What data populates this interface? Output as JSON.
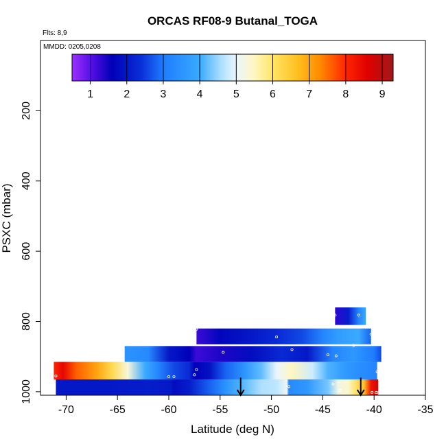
{
  "chart_data": {
    "type": "heatmap",
    "title": "ORCAS RF08-9 Butanal_TOGA",
    "subtitle_flights": "Flts: 8,9",
    "subtitle_dates": "MMDD: 0205,0208",
    "xlabel": "Latitude (deg N)",
    "ylabel": "PSXC (mbar)",
    "xlim": [
      -72.5,
      -35
    ],
    "ylim": [
      1010,
      0
    ],
    "x_ticks": [
      -70,
      -65,
      -60,
      -55,
      -50,
      -45,
      -40,
      -35
    ],
    "y_ticks": [
      200,
      400,
      600,
      800,
      1000
    ],
    "colorbar": {
      "range": [
        0.5,
        9.3
      ],
      "ticks": [
        1,
        2,
        3,
        4,
        5,
        6,
        7,
        8,
        9
      ],
      "stops": [
        {
          "v": 0.5,
          "c": "#9b30ff"
        },
        {
          "v": 1.0,
          "c": "#5a10e6"
        },
        {
          "v": 1.6,
          "c": "#0000b8"
        },
        {
          "v": 2.4,
          "c": "#0a2fd8"
        },
        {
          "v": 3.0,
          "c": "#1e7cff"
        },
        {
          "v": 4.0,
          "c": "#3aaaff"
        },
        {
          "v": 4.6,
          "c": "#aee0ff"
        },
        {
          "v": 5.0,
          "c": "#eaf6ff"
        },
        {
          "v": 5.5,
          "c": "#fff6c0"
        },
        {
          "v": 6.0,
          "c": "#ffe566"
        },
        {
          "v": 6.7,
          "c": "#ffbe1e"
        },
        {
          "v": 7.3,
          "c": "#ff8a00"
        },
        {
          "v": 8.0,
          "c": "#ff2600"
        },
        {
          "v": 8.6,
          "c": "#e00000"
        },
        {
          "v": 9.3,
          "c": "#a01818"
        }
      ]
    },
    "bands": [
      {
        "p_top": 760,
        "p_bot": 810,
        "points": [
          [
            -43.8,
            1.3
          ],
          [
            -42.5,
            2.1
          ],
          [
            -41.5,
            3.2
          ],
          [
            -40.8,
            4.0
          ]
        ]
      },
      {
        "p_top": 820,
        "p_bot": 865,
        "points": [
          [
            -57.3,
            1.2
          ],
          [
            -55,
            1.7
          ],
          [
            -52,
            2.0
          ],
          [
            -49.5,
            2.3
          ],
          [
            -47,
            2.6
          ],
          [
            -45,
            3.2
          ],
          [
            -43.5,
            3.7
          ],
          [
            -41.5,
            4.0
          ],
          [
            -40.3,
            2.8
          ]
        ]
      },
      {
        "p_top": 870,
        "p_bot": 915,
        "points": [
          [
            -64.3,
            3.5
          ],
          [
            -62,
            3.3
          ],
          [
            -60,
            2.0
          ],
          [
            -58,
            1.6
          ],
          [
            -57.3,
            1.2
          ],
          [
            -55,
            1.4
          ],
          [
            -52,
            1.8
          ],
          [
            -49,
            2.3
          ],
          [
            -46.5,
            2.0
          ],
          [
            -44,
            3.2
          ],
          [
            -42,
            3.6
          ],
          [
            -40,
            3.0
          ],
          [
            -39.3,
            2.6
          ]
        ]
      },
      {
        "p_top": 915,
        "p_bot": 965,
        "points": [
          [
            -71.2,
            8.0
          ],
          [
            -70.3,
            8.5
          ],
          [
            -69,
            7.6
          ],
          [
            -67,
            7.0
          ],
          [
            -65.5,
            6.2
          ],
          [
            -64,
            5.3
          ],
          [
            -62.3,
            4.0
          ],
          [
            -61,
            3.2
          ],
          [
            -59.5,
            2.6
          ],
          [
            -58,
            2.3
          ],
          [
            -57.5,
            1.6
          ],
          [
            -56,
            1.9
          ],
          [
            -54.5,
            2.8
          ],
          [
            -52.5,
            3.6
          ],
          [
            -51,
            4.2
          ],
          [
            -49.5,
            5.0
          ],
          [
            -48,
            5.5
          ],
          [
            -46,
            4.8
          ],
          [
            -44.5,
            4.1
          ],
          [
            -43,
            3.7
          ],
          [
            -41.5,
            3.4
          ],
          [
            -39.7,
            3.2
          ]
        ]
      },
      {
        "p_top": 965,
        "p_bot": 1010,
        "points": [
          [
            -71,
            2.0
          ],
          [
            -66,
            2.0
          ],
          [
            -62,
            2.1
          ],
          [
            -59.8,
            2.0
          ],
          [
            -59.5,
            1.8
          ],
          [
            -58,
            2.1
          ],
          [
            -56,
            2.8
          ],
          [
            -54.5,
            3.5
          ],
          [
            -53,
            4.1
          ],
          [
            -51,
            4.6
          ],
          [
            -49.5,
            4.7
          ],
          [
            -48.5,
            5.1
          ],
          [
            -48.3,
            3.3
          ],
          [
            -46.5,
            3.6
          ],
          [
            -44.5,
            4.3
          ],
          [
            -43.5,
            5.2
          ],
          [
            -42.5,
            5.4
          ],
          [
            -41.7,
            6.1
          ],
          [
            -41,
            6.6
          ],
          [
            -40.3,
            8.3
          ],
          [
            -39.6,
            8.8
          ]
        ]
      }
    ],
    "sample_points": [
      [
        -43.8,
        782
      ],
      [
        -41.5,
        782
      ],
      [
        -57.3,
        822
      ],
      [
        -49.5,
        844
      ],
      [
        -40.3,
        836
      ],
      [
        -54.7,
        888
      ],
      [
        -48,
        880
      ],
      [
        -44.5,
        895
      ],
      [
        -43.7,
        898
      ],
      [
        -42,
        868
      ],
      [
        -71,
        955
      ],
      [
        -60,
        957
      ],
      [
        -59.5,
        957
      ],
      [
        -57.3,
        937
      ],
      [
        -57.5,
        952
      ],
      [
        -48.3,
        985
      ],
      [
        -44,
        978
      ],
      [
        -43.3,
        996
      ],
      [
        -41.5,
        1000
      ],
      [
        -39.7,
        943
      ],
      [
        -40.2,
        1002
      ],
      [
        -39.8,
        1002
      ],
      [
        -39.6,
        1003
      ]
    ],
    "arrows": [
      {
        "x": -53.0,
        "p_top": 960,
        "p_bot": 1010
      },
      {
        "x": -41.3,
        "p_top": 960,
        "p_bot": 1010
      }
    ]
  }
}
